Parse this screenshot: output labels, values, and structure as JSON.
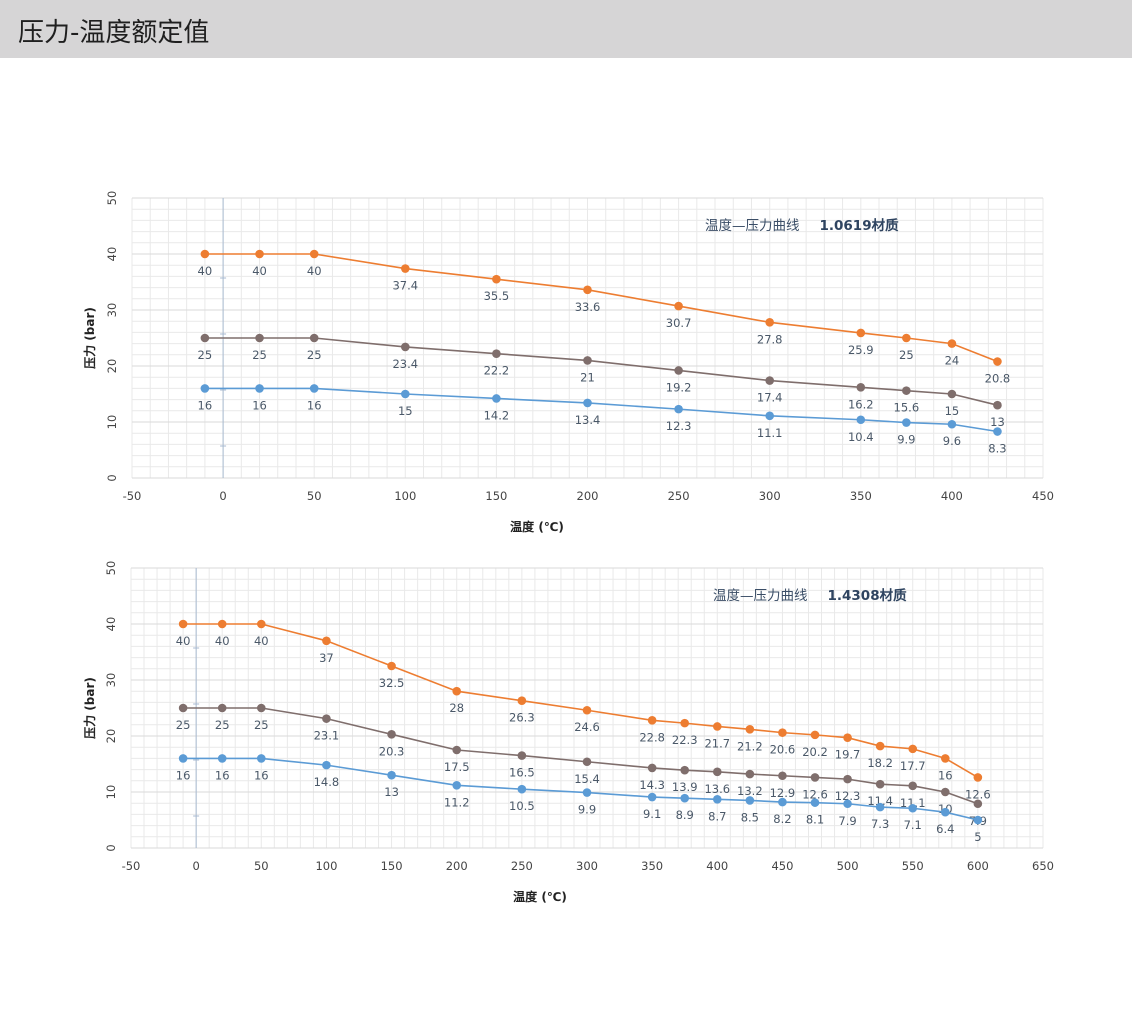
{
  "page": {
    "title": "压力-温度额定值"
  },
  "chart_data": [
    {
      "type": "line",
      "title_prefix": "温度—压力曲线",
      "title_material": "1.0619材质",
      "xlabel": "温度 (℃)",
      "ylabel": "压力 (bar)",
      "xlim": [
        -50,
        450
      ],
      "ylim": [
        0,
        50
      ],
      "xticks": [
        -50,
        0,
        50,
        100,
        150,
        200,
        250,
        300,
        350,
        400,
        450
      ],
      "yticks": [
        0,
        10,
        20,
        30,
        40,
        50
      ],
      "grid": true,
      "x": [
        -10,
        20,
        50,
        100,
        150,
        200,
        250,
        300,
        350,
        375,
        400,
        425
      ],
      "series": [
        {
          "color": "#ed7d31",
          "values": [
            40,
            40,
            40,
            37.4,
            35.5,
            33.6,
            30.7,
            27.8,
            25.9,
            25,
            24,
            20.8
          ]
        },
        {
          "color": "#7f6e6c",
          "values": [
            25,
            25,
            25,
            23.4,
            22.2,
            21,
            19.2,
            17.4,
            16.2,
            15.6,
            15,
            13
          ]
        },
        {
          "color": "#5b9bd5",
          "values": [
            16,
            16,
            16,
            15,
            14.2,
            13.4,
            12.3,
            11.1,
            10.4,
            9.9,
            9.6,
            8.3
          ]
        }
      ]
    },
    {
      "type": "line",
      "title_prefix": "温度—压力曲线",
      "title_material": "1.4308材质",
      "xlabel": "温度 (℃)",
      "ylabel": "压力 (bar)",
      "xlim": [
        -50,
        650
      ],
      "ylim": [
        0,
        50
      ],
      "xticks": [
        -50,
        0,
        50,
        100,
        150,
        200,
        250,
        300,
        350,
        400,
        450,
        500,
        550,
        600,
        650
      ],
      "yticks": [
        0,
        10,
        20,
        30,
        40,
        50
      ],
      "grid": true,
      "x": [
        -10,
        20,
        50,
        100,
        150,
        200,
        250,
        300,
        350,
        375,
        400,
        425,
        450,
        475,
        500,
        525,
        550,
        575,
        600
      ],
      "series": [
        {
          "color": "#ed7d31",
          "values": [
            40,
            40,
            40,
            37,
            32.5,
            28,
            26.3,
            24.6,
            22.8,
            22.3,
            21.7,
            21.2,
            20.6,
            20.2,
            19.7,
            18.2,
            17.7,
            16,
            12.6
          ]
        },
        {
          "color": "#7f6e6c",
          "values": [
            25,
            25,
            25,
            23.1,
            20.3,
            17.5,
            16.5,
            15.4,
            14.3,
            13.9,
            13.6,
            13.2,
            12.9,
            12.6,
            12.3,
            11.4,
            11.1,
            10,
            7.9
          ]
        },
        {
          "color": "#5b9bd5",
          "values": [
            16,
            16,
            16,
            14.8,
            13,
            11.2,
            10.5,
            9.9,
            9.1,
            8.9,
            8.7,
            8.5,
            8.2,
            8.1,
            7.9,
            7.3,
            7.1,
            6.4,
            5
          ]
        }
      ]
    }
  ]
}
